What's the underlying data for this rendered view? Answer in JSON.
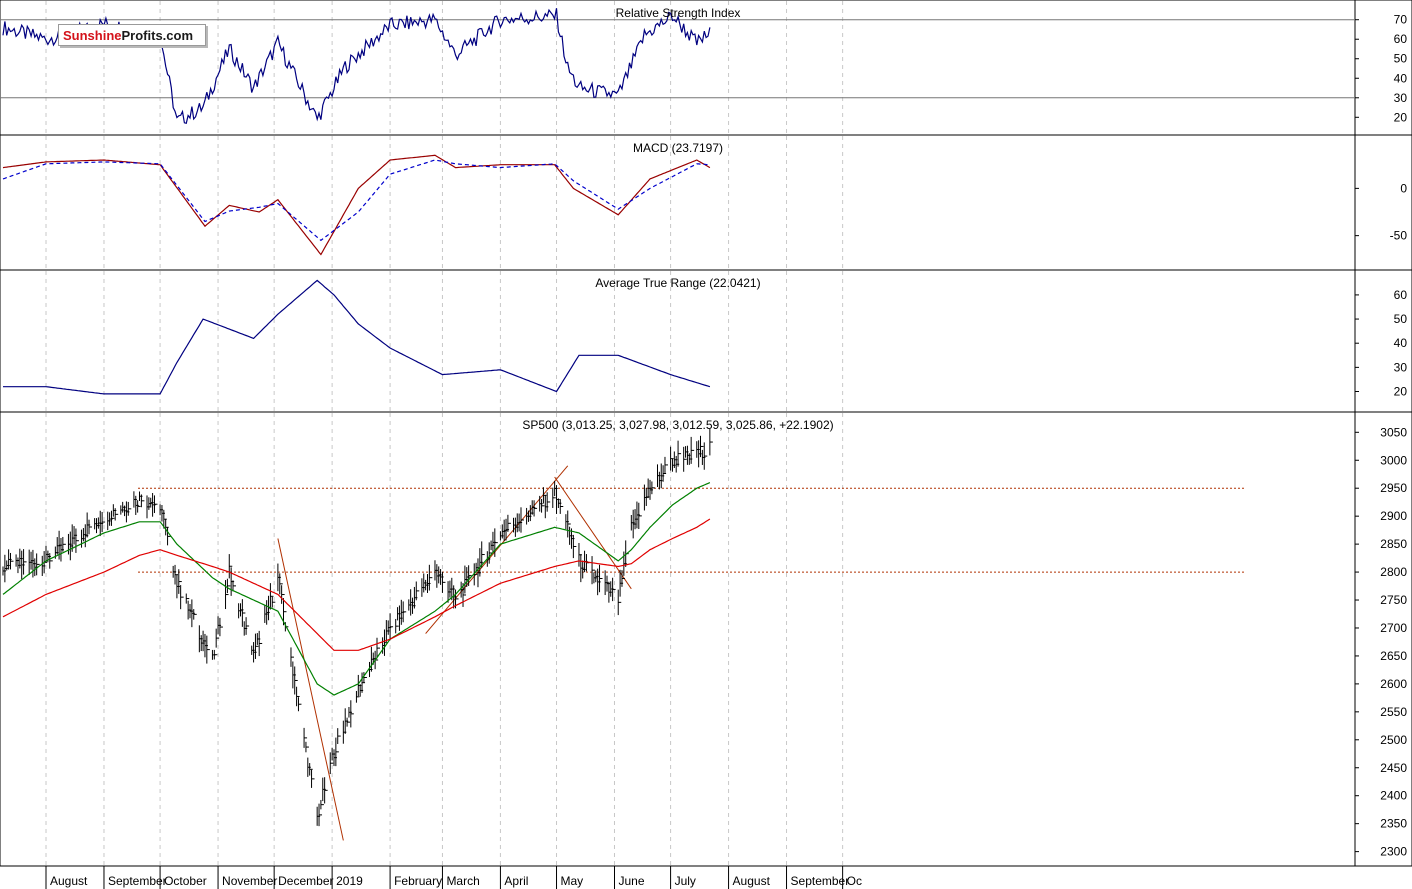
{
  "logo": {
    "part1": "Sunshine",
    "part2": "Profits.com"
  },
  "colors": {
    "price": "#000000",
    "ma_short": "#008000",
    "ma_long": "#e00000",
    "trend": "#b03000",
    "level": "#b03000",
    "rsi": "#000080",
    "macd": "#990000",
    "signal": "#0000cc",
    "atr": "#000080"
  },
  "x_axis": {
    "months": [
      "August",
      "September",
      "October",
      "November",
      "December",
      "2019",
      "February",
      "March",
      "April",
      "May",
      "June",
      "July",
      "August",
      "September",
      "Oc"
    ]
  },
  "chart_data": [
    {
      "type": "line",
      "title": "Relative Strength Index",
      "y_ticks": [
        70,
        60,
        50,
        40,
        30,
        20
      ],
      "ylim": [
        14,
        76
      ],
      "reference_lines": [
        70,
        30
      ],
      "grid": true,
      "x": [
        "2018-07-09",
        "2018-08-01",
        "2018-09-01",
        "2018-10-01",
        "2018-10-10",
        "2018-10-24",
        "2018-11-07",
        "2018-11-20",
        "2018-12-03",
        "2018-12-24",
        "2019-01-08",
        "2019-02-01",
        "2019-02-25",
        "2019-03-08",
        "2019-04-01",
        "2019-05-01",
        "2019-05-07",
        "2019-05-13",
        "2019-06-03",
        "2019-06-17",
        "2019-07-02",
        "2019-07-15",
        "2019-07-22"
      ],
      "series": [
        {
          "values": [
            66,
            60,
            68,
            62,
            18,
            25,
            55,
            35,
            58,
            19,
            46,
            67,
            70,
            52,
            70,
            72,
            45,
            35,
            31,
            62,
            72,
            58,
            63
          ]
        }
      ]
    },
    {
      "type": "line",
      "title": "MACD (23.7197)",
      "y_ticks": [
        0,
        -50
      ],
      "ylim": [
        -80,
        48
      ],
      "grid": true,
      "x": [
        "2018-07-09",
        "2018-08-01",
        "2018-09-01",
        "2018-10-01",
        "2018-10-25",
        "2018-11-07",
        "2018-11-23",
        "2018-12-03",
        "2018-12-26",
        "2019-01-15",
        "2019-02-01",
        "2019-02-25",
        "2019-03-08",
        "2019-04-01",
        "2019-04-30",
        "2019-05-10",
        "2019-06-03",
        "2019-06-20",
        "2019-07-15",
        "2019-07-22"
      ],
      "series": [
        {
          "values": [
            22,
            28,
            30,
            25,
            -40,
            -18,
            -25,
            -12,
            -70,
            0,
            30,
            35,
            22,
            25,
            25,
            0,
            -28,
            10,
            30,
            22
          ]
        },
        {
          "values": [
            10,
            26,
            28,
            26,
            -35,
            -24,
            -20,
            -16,
            -55,
            -25,
            15,
            30,
            26,
            22,
            26,
            8,
            -22,
            0,
            26,
            25
          ]
        }
      ]
    },
    {
      "type": "line",
      "title": "Average True Range (22.0421)",
      "y_ticks": [
        60,
        50,
        40,
        30,
        20
      ],
      "ylim": [
        14,
        67
      ],
      "grid": true,
      "x": [
        "2018-07-09",
        "2018-08-01",
        "2018-09-01",
        "2018-10-01",
        "2018-10-10",
        "2018-10-24",
        "2018-11-20",
        "2018-12-03",
        "2018-12-24",
        "2019-01-02",
        "2019-01-15",
        "2019-02-01",
        "2019-03-01",
        "2019-04-01",
        "2019-05-01",
        "2019-05-13",
        "2019-06-03",
        "2019-07-01",
        "2019-07-22"
      ],
      "series": [
        {
          "values": [
            22,
            22,
            19,
            19,
            32,
            50,
            42,
            52,
            66,
            60,
            48,
            38,
            27,
            29,
            20,
            35,
            35,
            27,
            22
          ]
        }
      ]
    },
    {
      "type": "line",
      "title": "SP500 (3,013.25, 3,027.98, 3,012.59, 3,025.86, +22.1902)",
      "y_ticks": [
        3050,
        3000,
        2950,
        2900,
        2850,
        2800,
        2750,
        2700,
        2650,
        2600,
        2550,
        2500,
        2450,
        2400,
        2350,
        2300
      ],
      "ylim": [
        2285,
        3072
      ],
      "grid": true,
      "ohlc_note": "daily high-low bars",
      "x": [
        "2018-07-09",
        "2018-08-01",
        "2018-09-01",
        "2018-09-20",
        "2018-10-01",
        "2018-10-10",
        "2018-10-29",
        "2018-11-07",
        "2018-11-20",
        "2018-12-03",
        "2018-12-24",
        "2019-01-02",
        "2019-01-15",
        "2019-02-01",
        "2019-02-25",
        "2019-03-08",
        "2019-04-01",
        "2019-04-30",
        "2019-05-13",
        "2019-06-03",
        "2019-06-10",
        "2019-06-20",
        "2019-07-02",
        "2019-07-15",
        "2019-07-22"
      ],
      "series": [
        {
          "name": "SP500",
          "values": [
            2810,
            2820,
            2900,
            2930,
            2920,
            2780,
            2640,
            2800,
            2650,
            2790,
            2360,
            2480,
            2590,
            2700,
            2800,
            2750,
            2870,
            2940,
            2820,
            2750,
            2880,
            2950,
            3000,
            3010,
            3025
          ]
        },
        {
          "values": [
            2760,
            2820,
            2870,
            2890,
            2890,
            2850,
            2790,
            2770,
            2750,
            2730,
            2600,
            2580,
            2600,
            2680,
            2730,
            2760,
            2850,
            2880,
            2870,
            2820,
            2840,
            2880,
            2920,
            2950,
            2960
          ]
        },
        {
          "values": [
            2720,
            2760,
            2800,
            2830,
            2840,
            2830,
            2810,
            2800,
            2780,
            2760,
            2690,
            2660,
            2660,
            2680,
            2720,
            2740,
            2780,
            2810,
            2820,
            2810,
            2815,
            2840,
            2860,
            2880,
            2895
          ]
        }
      ],
      "horizontal_levels": [
        2950,
        2800
      ],
      "trend_lines": [
        {
          "from": [
            "2018-12-03",
            2860
          ],
          "to": [
            "2019-01-07",
            2320
          ]
        },
        {
          "from": [
            "2019-02-20",
            2690
          ],
          "to": [
            "2019-05-07",
            2990
          ]
        },
        {
          "from": [
            "2019-04-30",
            2970
          ],
          "to": [
            "2019-06-10",
            2770
          ]
        }
      ]
    }
  ]
}
